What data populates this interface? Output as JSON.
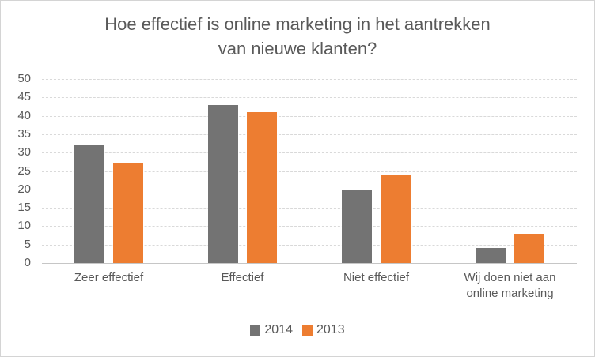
{
  "chart_data": {
    "type": "bar",
    "title": "Hoe effectief is online marketing in het aantrekken van nieuwe klanten?",
    "title_lines": [
      "Hoe effectief is online marketing in het aantrekken",
      "van nieuwe klanten?"
    ],
    "categories": [
      "Zeer effectief",
      "Effectief",
      "Niet effectief",
      "Wij doen niet aan online marketing"
    ],
    "series": [
      {
        "name": "2014",
        "color": "#737373",
        "values": [
          32,
          43,
          20,
          4
        ]
      },
      {
        "name": "2013",
        "color": "#ED7D31",
        "values": [
          27,
          41,
          24,
          8
        ]
      }
    ],
    "ylim": [
      0,
      50
    ],
    "ytick_step": 5,
    "yticks": [
      0,
      5,
      10,
      15,
      20,
      25,
      30,
      35,
      40,
      45,
      50
    ],
    "xlabel": "",
    "ylabel": "",
    "grid": true,
    "legend_position": "bottom",
    "legend": [
      "2014",
      "2013"
    ]
  },
  "colors": {
    "title_text": "#595959",
    "axis_text": "#595959",
    "gridline": "#D9D9D9",
    "axis_line": "#C6C6C6",
    "series_2014": "#737373",
    "series_2013": "#ED7D31",
    "background": "#FFFFFF",
    "border": "#D4D4D4"
  }
}
